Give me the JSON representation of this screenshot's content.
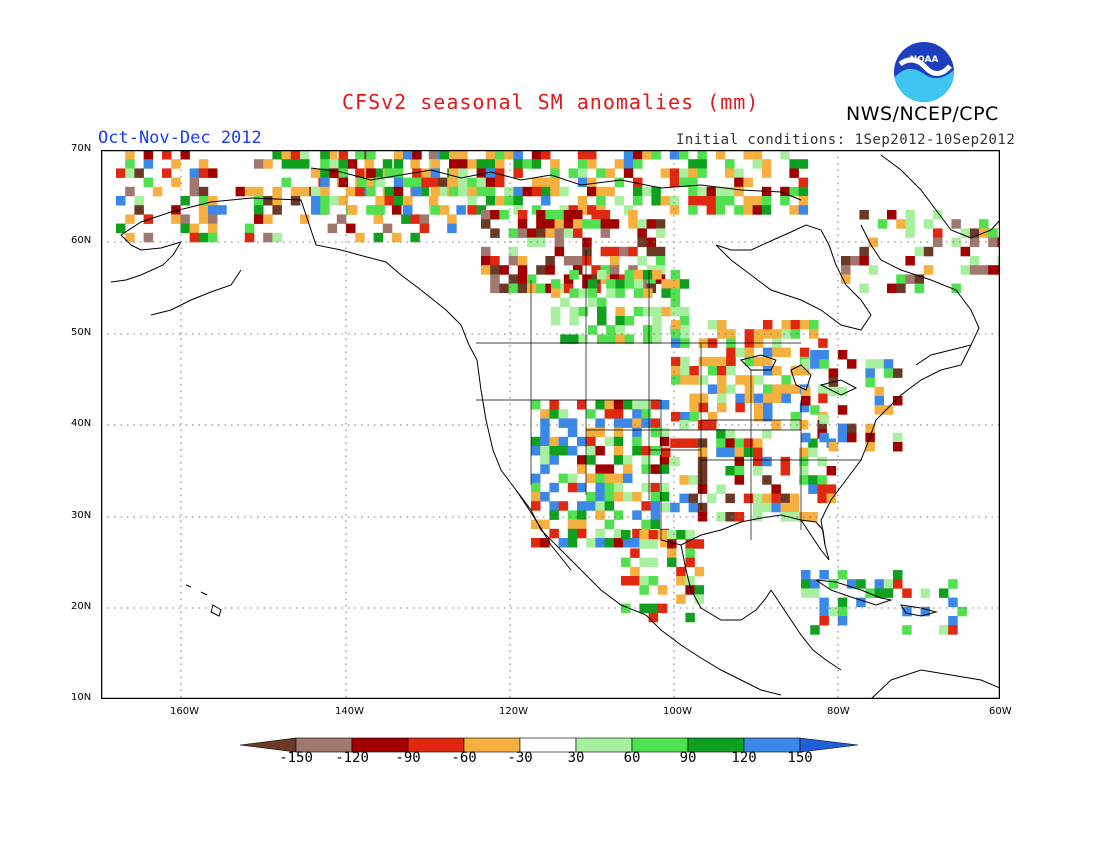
{
  "header": {
    "title": "CFSv2 seasonal SM anomalies (mm)",
    "agency": "NWS/NCEP/CPC",
    "logo_text": "NOAA",
    "period": "Oct-Nov-Dec 2012",
    "initial_conditions": "Initial conditions: 1Sep2012-10Sep2012"
  },
  "axes": {
    "lat_labels": [
      "70N",
      "60N",
      "50N",
      "40N",
      "30N",
      "20N",
      "10N"
    ],
    "lon_labels": [
      "160W",
      "140W",
      "120W",
      "100W",
      "80W",
      "60W"
    ]
  },
  "colorbar": {
    "labels": [
      "-150",
      "-120",
      "-90",
      "-60",
      "-30",
      "30",
      "60",
      "90",
      "120",
      "150"
    ],
    "colors": [
      "#6b3a26",
      "#a07870",
      "#a00000",
      "#e02810",
      "#f5b040",
      "#ffffff",
      "#a8f0a0",
      "#50e050",
      "#10a020",
      "#3c88e8",
      "#2060d8"
    ]
  },
  "map": {
    "lon_range": [
      -172,
      -60
    ],
    "lat_range": [
      10,
      70
    ],
    "grid": "dotted 10-degree lines"
  }
}
